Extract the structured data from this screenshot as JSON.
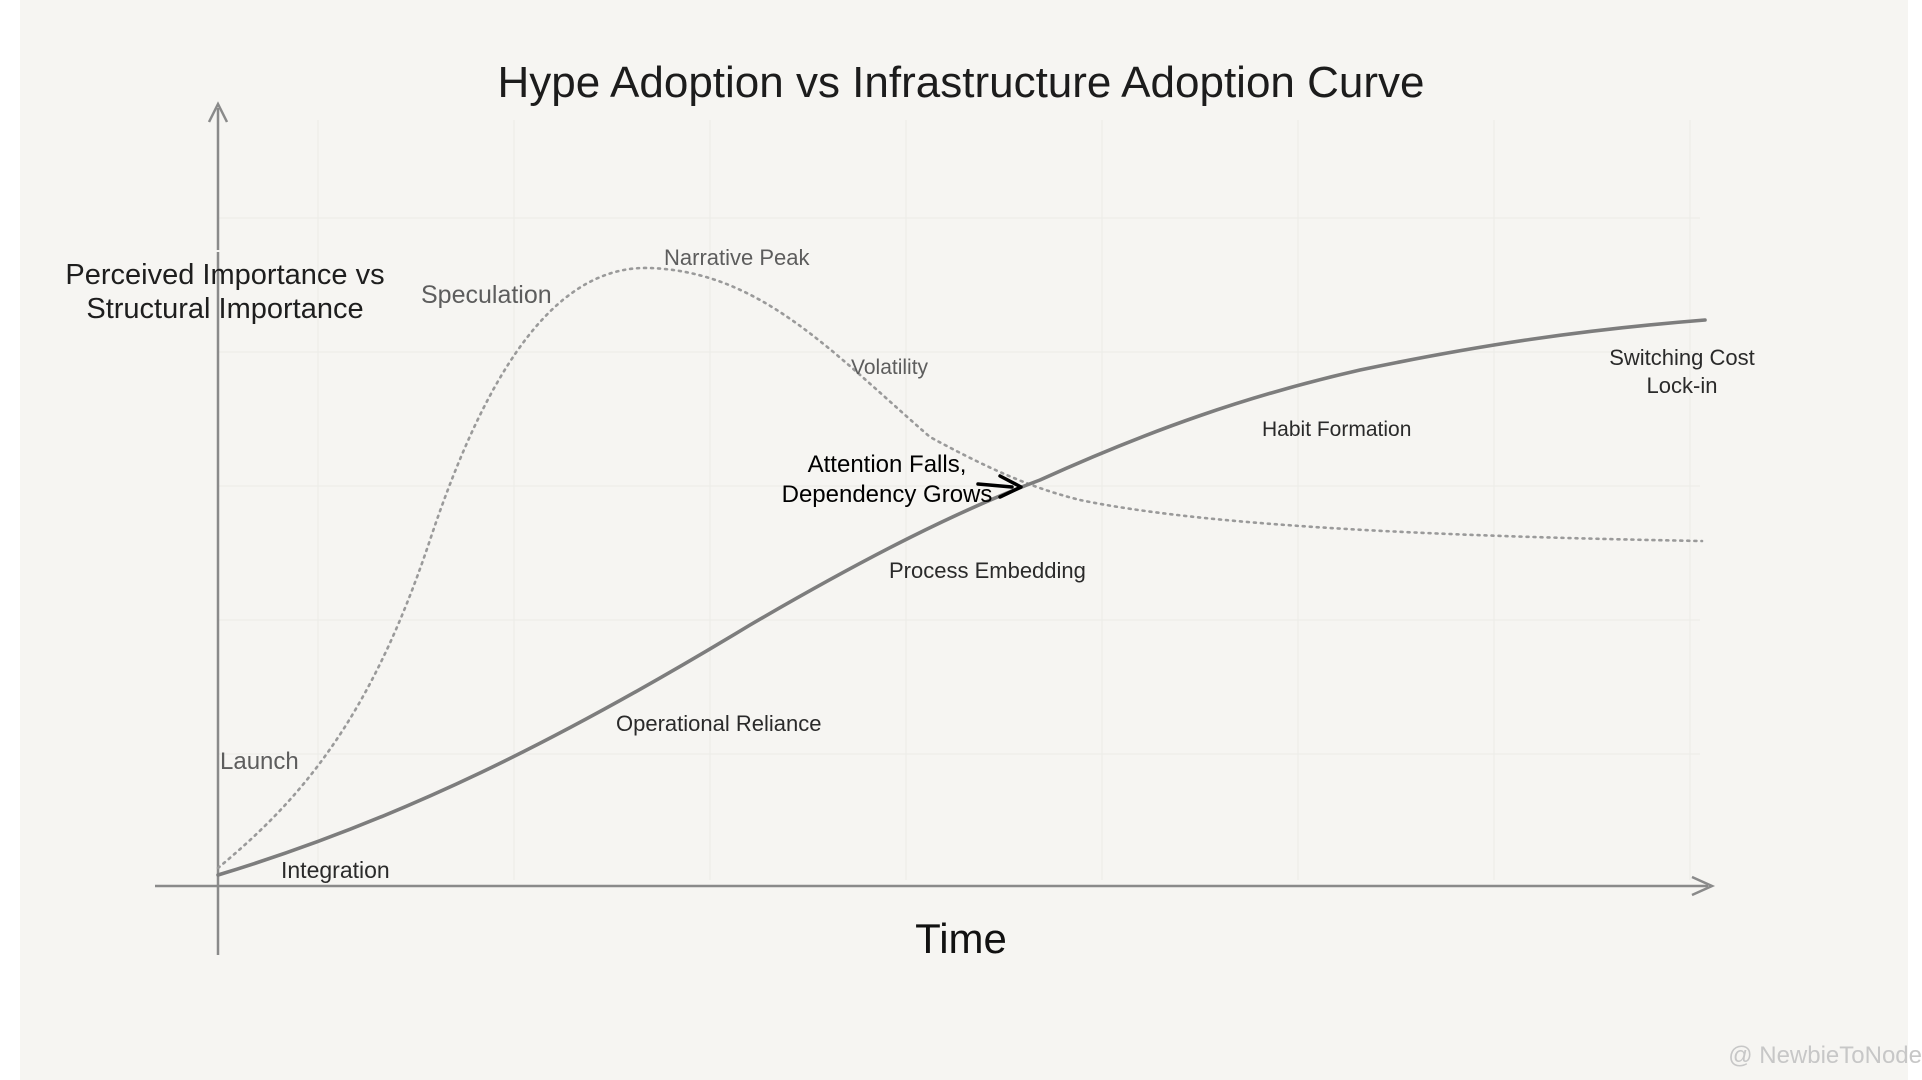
{
  "title": "Hype Adoption vs Infrastructure Adoption Curve",
  "y_axis_label": "Perceived Importance vs Structural Importance",
  "x_axis_label": "Time",
  "hype_curve": {
    "line_style": "dotted",
    "color": "#9a9a9a",
    "stages": [
      "Launch",
      "Speculation",
      "Narrative Peak",
      "Volatility"
    ]
  },
  "infrastructure_curve": {
    "line_style": "solid",
    "color": "#7d7d7d",
    "stages": [
      "Integration",
      "Operational Reliance",
      "Process Embedding",
      "Habit Formation",
      "Switching Cost Lock-in"
    ]
  },
  "crossover_callout": "Attention Falls, Dependency Grows",
  "watermark": "@ NewbieToNode",
  "colors": {
    "background": "#f6f5f2",
    "axis": "#8a8a8a",
    "text": "#333333",
    "grid": "#ecebe7"
  }
}
